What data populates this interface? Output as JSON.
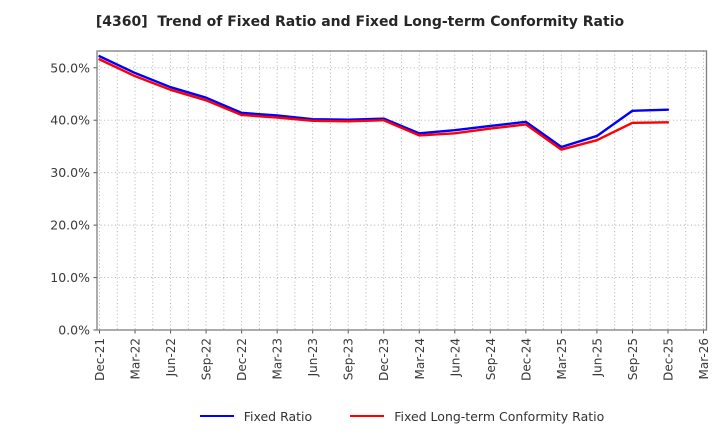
{
  "title": "[4360]  Trend of Fixed Ratio and Fixed Long-term Conformity Ratio",
  "chart_data": {
    "type": "line",
    "title": "[4360]  Trend of Fixed Ratio and Fixed Long-term Conformity Ratio",
    "categories": [
      "Dec-21",
      "Mar-22",
      "Jun-22",
      "Sep-22",
      "Dec-22",
      "Mar-23",
      "Jun-23",
      "Sep-23",
      "Dec-23",
      "Mar-24",
      "Jun-24",
      "Sep-24",
      "Dec-24",
      "Mar-25",
      "Jun-25",
      "Sep-25",
      "Dec-25",
      "Mar-26"
    ],
    "series": [
      {
        "name": "Fixed Ratio",
        "color": "#0000ff",
        "values": [
          52.2,
          49.0,
          46.3,
          44.3,
          41.4,
          40.9,
          40.2,
          40.1,
          40.3,
          37.5,
          38.1,
          38.9,
          39.7,
          34.9,
          37.0,
          41.8,
          42.0
        ]
      },
      {
        "name": "Fixed Long-term Conformity Ratio",
        "color": "#ff0000",
        "values": [
          51.6,
          48.4,
          45.8,
          43.8,
          41.0,
          40.5,
          39.9,
          39.8,
          40.0,
          37.1,
          37.5,
          38.4,
          39.2,
          34.4,
          36.2,
          39.5,
          39.6
        ]
      }
    ],
    "ylabel": "",
    "xlabel": "",
    "ylim": [
      0,
      53.2
    ],
    "ytick_labels": [
      "0.0%",
      "10.0%",
      "20.0%",
      "30.0%",
      "40.0%",
      "50.0%"
    ],
    "ytick_values": [
      0,
      10,
      20,
      30,
      40,
      50
    ],
    "grid": true,
    "grid_style": "dotted",
    "legend_position": "bottom",
    "note_last_category_has_no_data": true
  },
  "legend": {
    "items": [
      {
        "label": "Fixed Ratio",
        "color": "#0000ff"
      },
      {
        "label": "Fixed Long-term Conformity Ratio",
        "color": "#ff0000"
      }
    ]
  },
  "colors": {
    "background": "#ffffff",
    "plot_border": "#808080",
    "gridline": "#aaaaaa",
    "tick_label": "#3a3a3a",
    "title_text": "#262626",
    "series_blue": "#0000ff",
    "series_red": "#ff0000"
  }
}
